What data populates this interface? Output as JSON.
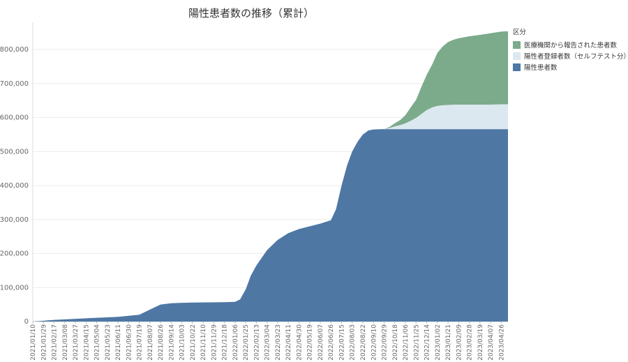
{
  "chart_data": {
    "type": "area",
    "title": "陽性患者数の推移（累計）",
    "stacked": true,
    "xlabel": "",
    "ylabel": "",
    "ylim": [
      0,
      880000
    ],
    "yticks": [
      0,
      100000,
      200000,
      300000,
      400000,
      500000,
      600000,
      700000,
      800000
    ],
    "ytick_labels": [
      "0",
      "100,000",
      "200,000",
      "300,000",
      "400,000",
      "500,000",
      "600,000",
      "700,000",
      "800,000"
    ],
    "xticks": [
      "2021/01/10",
      "2021/01/29",
      "2021/02/17",
      "2021/03/08",
      "2021/03/27",
      "2021/04/15",
      "2021/05/04",
      "2021/05/23",
      "2021/06/11",
      "2021/06/30",
      "2021/07/19",
      "2021/08/07",
      "2021/08/26",
      "2021/09/14",
      "2021/10/03",
      "2021/10/22",
      "2021/11/10",
      "2021/11/29",
      "2021/12/18",
      "2022/01/06",
      "2022/01/25",
      "2022/02/13",
      "2022/03/04",
      "2022/03/23",
      "2022/04/11",
      "2022/04/30",
      "2022/05/19",
      "2022/06/07",
      "2022/06/26",
      "2022/07/15",
      "2022/08/03",
      "2022/08/22",
      "2022/09/10",
      "2022/09/29",
      "2022/10/18",
      "2022/11/06",
      "2022/11/25",
      "2022/12/14",
      "2023/01/02",
      "2023/01/21",
      "2023/02/09",
      "2023/02/28",
      "2023/03/19",
      "2023/04/07",
      "2023/04/26"
    ],
    "grid": true,
    "legend": {
      "title": "区分",
      "position": "right",
      "items": [
        {
          "name": "医療機関から報告された患者数",
          "color": "#7bab8b"
        },
        {
          "name": "陽性者登録者数（セルフテスト分）",
          "color": "#dce8ef"
        },
        {
          "name": "陽性患者数",
          "color": "#4e77a4"
        }
      ]
    },
    "x": [
      "2021/01/10",
      "2021/02/17",
      "2021/03/27",
      "2021/05/04",
      "2021/06/11",
      "2021/07/19",
      "2021/08/07",
      "2021/08/26",
      "2021/09/14",
      "2021/10/22",
      "2021/12/18",
      "2022/01/06",
      "2022/01/15",
      "2022/01/25",
      "2022/02/03",
      "2022/02/13",
      "2022/03/04",
      "2022/03/23",
      "2022/04/11",
      "2022/04/30",
      "2022/05/19",
      "2022/06/07",
      "2022/06/26",
      "2022/07/05",
      "2022/07/15",
      "2022/07/25",
      "2022/08/03",
      "2022/08/13",
      "2022/08/22",
      "2022/09/01",
      "2022/09/10",
      "2022/09/25",
      "2022/09/29",
      "2022/10/08",
      "2022/10/18",
      "2022/10/28",
      "2022/11/06",
      "2022/11/15",
      "2022/11/25",
      "2022/12/05",
      "2022/12/14",
      "2022/12/24",
      "2023/01/02",
      "2023/01/11",
      "2023/01/21",
      "2023/01/31",
      "2023/02/09",
      "2023/02/28",
      "2023/03/19",
      "2023/04/07",
      "2023/04/26",
      "2023/05/08"
    ],
    "series": [
      {
        "name": "陽性患者数",
        "color": "#4e77a4",
        "values": [
          0,
          5000,
          8000,
          11000,
          14000,
          20000,
          35000,
          50000,
          54000,
          56000,
          57000,
          58000,
          65000,
          95000,
          135000,
          165000,
          210000,
          240000,
          260000,
          272000,
          280000,
          288000,
          298000,
          330000,
          400000,
          460000,
          500000,
          530000,
          550000,
          562000,
          565000,
          566000,
          566000,
          566000,
          566000,
          566000,
          566000,
          566000,
          566000,
          566000,
          566000,
          566000,
          566000,
          566000,
          566000,
          566000,
          566000,
          566000,
          566000,
          566000,
          566000,
          566000
        ]
      },
      {
        "name": "陽性者登録者数（セルフテスト分）",
        "color": "#dce8ef",
        "values": [
          0,
          0,
          0,
          0,
          0,
          0,
          0,
          0,
          0,
          0,
          0,
          0,
          0,
          0,
          0,
          0,
          0,
          0,
          0,
          0,
          0,
          0,
          0,
          0,
          0,
          0,
          0,
          0,
          0,
          0,
          0,
          0,
          0,
          3000,
          8000,
          12000,
          17000,
          24000,
          33000,
          45000,
          56000,
          64000,
          68000,
          70000,
          71000,
          72000,
          72000,
          72000,
          72000,
          72000,
          73000,
          73000
        ]
      },
      {
        "name": "医療機関から報告された患者数",
        "color": "#7bab8b",
        "values": [
          0,
          0,
          0,
          0,
          0,
          0,
          0,
          0,
          0,
          0,
          0,
          0,
          0,
          0,
          0,
          0,
          0,
          0,
          0,
          0,
          0,
          0,
          0,
          0,
          0,
          0,
          0,
          0,
          0,
          0,
          0,
          0,
          0,
          3000,
          9000,
          15000,
          24000,
          39000,
          53000,
          81000,
          104000,
          127000,
          156000,
          172000,
          185000,
          191000,
          195000,
          201000,
          205000,
          210000,
          214000,
          215000
        ]
      }
    ]
  }
}
